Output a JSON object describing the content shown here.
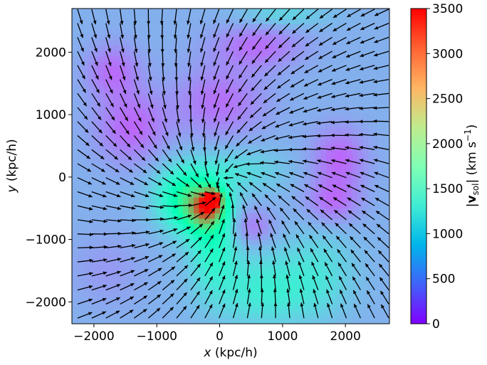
{
  "chart_data": {
    "type": "heatmap",
    "title": "",
    "xlabel": {
      "var": "x",
      "unit": " (kpc/h)"
    },
    "ylabel": {
      "var": "y",
      "unit": " (kpc/h)"
    },
    "colorbar_label": {
      "prefix": "|",
      "var": "v",
      "sub": "sol",
      "mid": "| (km s",
      "sup": "−1",
      "suffix": ")"
    },
    "xlim": [
      -2350,
      2700
    ],
    "ylim": [
      -2350,
      2700
    ],
    "clim": [
      0,
      3500
    ],
    "colormap": "rainbow",
    "xticks": [
      -2000,
      -1000,
      0,
      1000,
      2000
    ],
    "xtick_labels": [
      "−2000",
      "−1000",
      "0",
      "1000",
      "2000"
    ],
    "yticks": [
      -2000,
      -1000,
      0,
      1000,
      2000
    ],
    "ytick_labels": [
      "−2000",
      "−1000",
      "0",
      "1000",
      "2000"
    ],
    "cticks": [
      0,
      500,
      1000,
      1500,
      2000,
      2500,
      3000,
      3500
    ],
    "ctick_labels": [
      "0",
      "500",
      "1000",
      "1500",
      "2000",
      "2500",
      "3000",
      "3500"
    ],
    "background_speed": 850,
    "speed_features": [
      {
        "x": -200,
        "y": -500,
        "speed": 2500,
        "sx": 200,
        "sy": 200
      },
      {
        "x": -100,
        "y": -350,
        "speed": 2800,
        "sx": 100,
        "sy": 100
      },
      {
        "x": -400,
        "y": -400,
        "speed": 1900,
        "sx": 300,
        "sy": 350
      },
      {
        "x": -100,
        "y": -1000,
        "speed": 1600,
        "sx": 250,
        "sy": 500
      },
      {
        "x": 700,
        "y": -1800,
        "speed": 1400,
        "sx": 600,
        "sy": 400
      },
      {
        "x": -700,
        "y": -300,
        "speed": 1300,
        "sx": 300,
        "sy": 350
      },
      {
        "x": 300,
        "y": 100,
        "speed": 1200,
        "sx": 500,
        "sy": 250
      },
      {
        "x": 1600,
        "y": -1500,
        "speed": 1150,
        "sx": 400,
        "sy": 500
      },
      {
        "x": 0,
        "y": 1200,
        "speed": 450,
        "sx": 500,
        "sy": 400
      },
      {
        "x": -1400,
        "y": 800,
        "speed": 400,
        "sx": 400,
        "sy": 400
      },
      {
        "x": 1900,
        "y": 300,
        "speed": 400,
        "sx": 300,
        "sy": 350
      },
      {
        "x": -1700,
        "y": 1700,
        "speed": 450,
        "sx": 300,
        "sy": 300
      },
      {
        "x": 600,
        "y": 2100,
        "speed": 450,
        "sx": 500,
        "sy": 250
      },
      {
        "x": 500,
        "y": -800,
        "speed": 500,
        "sx": 250,
        "sy": 200
      },
      {
        "x": 1800,
        "y": -400,
        "speed": 450,
        "sx": 300,
        "sy": 250
      },
      {
        "x": -1800,
        "y": -1500,
        "speed": 700,
        "sx": 400,
        "sy": 400
      },
      {
        "x": 1000,
        "y": 2600,
        "speed": 1150,
        "sx": 500,
        "sy": 150
      }
    ],
    "quiver": {
      "sinks": [
        {
          "x": -200,
          "y": -300,
          "strength": 1.0
        },
        {
          "x": 400,
          "y": 200,
          "strength": 0.6
        }
      ],
      "swirl": 0.4,
      "grid_spacing": 225
    }
  }
}
